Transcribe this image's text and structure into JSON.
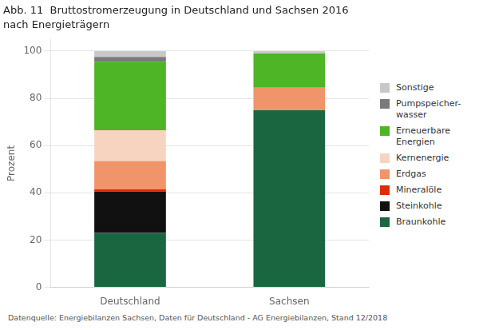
{
  "chart_data": {
    "type": "bar",
    "title": "Abb. 11  Bruttostromerzeugung in Deutschland und Sachsen 2016",
    "subtitle": "nach Energieträgern",
    "ylabel": "Prozent",
    "footnote": "Datenquelle: Energiebilanzen Sachsen, Daten für Deutschland - AG Energiebilanzen, Stand 12/2018",
    "categories": [
      "Deutschland",
      "Sachsen"
    ],
    "series": [
      {
        "name": "Braunkohle",
        "color": "#1a6641",
        "values": [
          23.0,
          75.0
        ]
      },
      {
        "name": "Steinkohle",
        "color": "#111111",
        "values": [
          17.5,
          0.0
        ]
      },
      {
        "name": "Mineralöle",
        "color": "#e02b0a",
        "values": [
          1.0,
          0.0
        ]
      },
      {
        "name": "Erdgas",
        "color": "#f0956a",
        "values": [
          12.0,
          9.5
        ]
      },
      {
        "name": "Kernenergie",
        "color": "#f7d4c0",
        "values": [
          13.0,
          0.0
        ]
      },
      {
        "name": "Erneuerbare\nEnergien",
        "color": "#4db526",
        "values": [
          29.0,
          14.5
        ]
      },
      {
        "name": "Pumpspeicher-\nwasser",
        "color": "#7a7a7a",
        "values": [
          2.0,
          0.0
        ]
      },
      {
        "name": "Sonstige",
        "color": "#c8c8c8",
        "values": [
          2.5,
          1.0
        ]
      }
    ],
    "stacked": true,
    "ylim": [
      0,
      105
    ],
    "yticks": [
      0,
      20,
      40,
      60,
      80,
      100
    ],
    "grid": true,
    "legend": "right"
  }
}
